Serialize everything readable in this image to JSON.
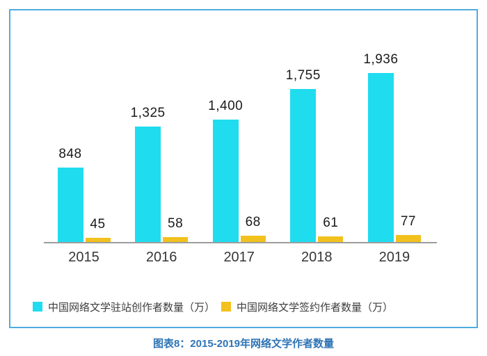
{
  "chart_data": {
    "type": "bar",
    "categories": [
      "2015",
      "2016",
      "2017",
      "2018",
      "2019"
    ],
    "series": [
      {
        "name": "中国网络文学驻站创作者数量（万）",
        "color": "#1FDCEF",
        "values": [
          848,
          1325,
          1400,
          1755,
          1936
        ]
      },
      {
        "name": "中国网络文学签约作者数量（万）",
        "color": "#F2C11E",
        "values": [
          45,
          58,
          68,
          61,
          77
        ]
      }
    ],
    "title": "图表8：2015-2019年网络文学作者数量",
    "xlabel": "",
    "ylabel": "",
    "ylim": [
      0,
      2100
    ],
    "grid": false,
    "legend_position": "bottom",
    "value_labels": true,
    "value_label_format": "thousands-comma"
  },
  "caption": "图表8：2015-2019年网络文学作者数量",
  "colors": {
    "frame_border": "#4FACDE",
    "axis_line": "#9C9C9C",
    "value_text": "#1A1A1A",
    "tick_text": "#363636",
    "legend_text": "#3D3D3D",
    "caption_text": "#2E74B5",
    "background": "#FFFFFF"
  }
}
